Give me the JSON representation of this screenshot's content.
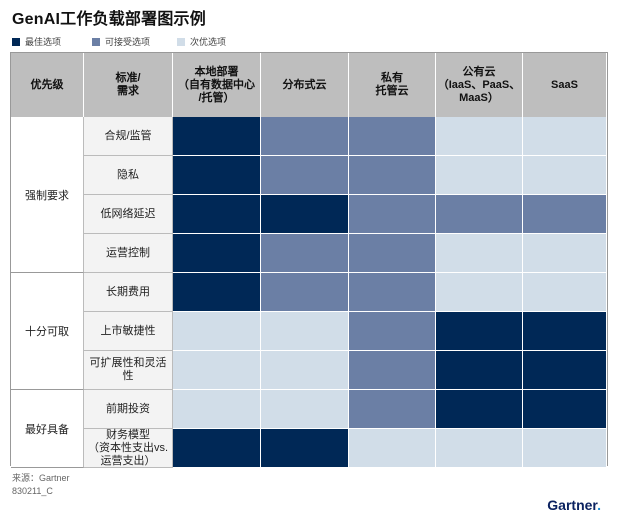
{
  "title": "GenAI工作负载部署图示例",
  "legend": [
    {
      "label": "最佳选项",
      "color": "#002856"
    },
    {
      "label": "可接受选项",
      "color": "#6b7fa5"
    },
    {
      "label": "次优选项",
      "color": "#d1dde8"
    }
  ],
  "headers": {
    "priority": "优先级",
    "standard": "标准/\n需求",
    "options": [
      "本地部署\n（自有数据中心\n/托管）",
      "分布式云",
      "私有\n托管云",
      "公有云\n（IaaS、PaaS、\nMaaS）",
      "SaaS"
    ]
  },
  "groups": [
    {
      "label": "强制要求",
      "rows": 4
    },
    {
      "label": "十分可取",
      "rows": 3
    },
    {
      "label": "最好具备",
      "rows": 2
    }
  ],
  "rows": [
    {
      "label": "合规/监管",
      "ratings": [
        1,
        2,
        2,
        3,
        3
      ]
    },
    {
      "label": "隐私",
      "ratings": [
        1,
        2,
        2,
        3,
        3
      ]
    },
    {
      "label": "低网络延迟",
      "ratings": [
        1,
        1,
        2,
        2,
        2
      ]
    },
    {
      "label": "运营控制",
      "ratings": [
        1,
        2,
        2,
        3,
        3
      ]
    },
    {
      "label": "长期费用",
      "ratings": [
        1,
        2,
        2,
        3,
        3
      ]
    },
    {
      "label": "上市敏捷性",
      "ratings": [
        3,
        3,
        2,
        1,
        1
      ]
    },
    {
      "label": "可扩展性和灵活性",
      "ratings": [
        3,
        3,
        2,
        1,
        1
      ]
    },
    {
      "label": "前期投资",
      "ratings": [
        3,
        3,
        2,
        1,
        1
      ]
    },
    {
      "label": "财务模型\n（资本性支出vs.\n运营支出）",
      "ratings": [
        1,
        1,
        3,
        3,
        3
      ]
    }
  ],
  "rating_colors": {
    "1": "#002856",
    "2": "#6b7fa5",
    "3": "#d1dde8"
  },
  "footer": {
    "source": "来源：Gartner",
    "id": "830211_C",
    "logo": "Gartner",
    "logo_dot": "."
  }
}
